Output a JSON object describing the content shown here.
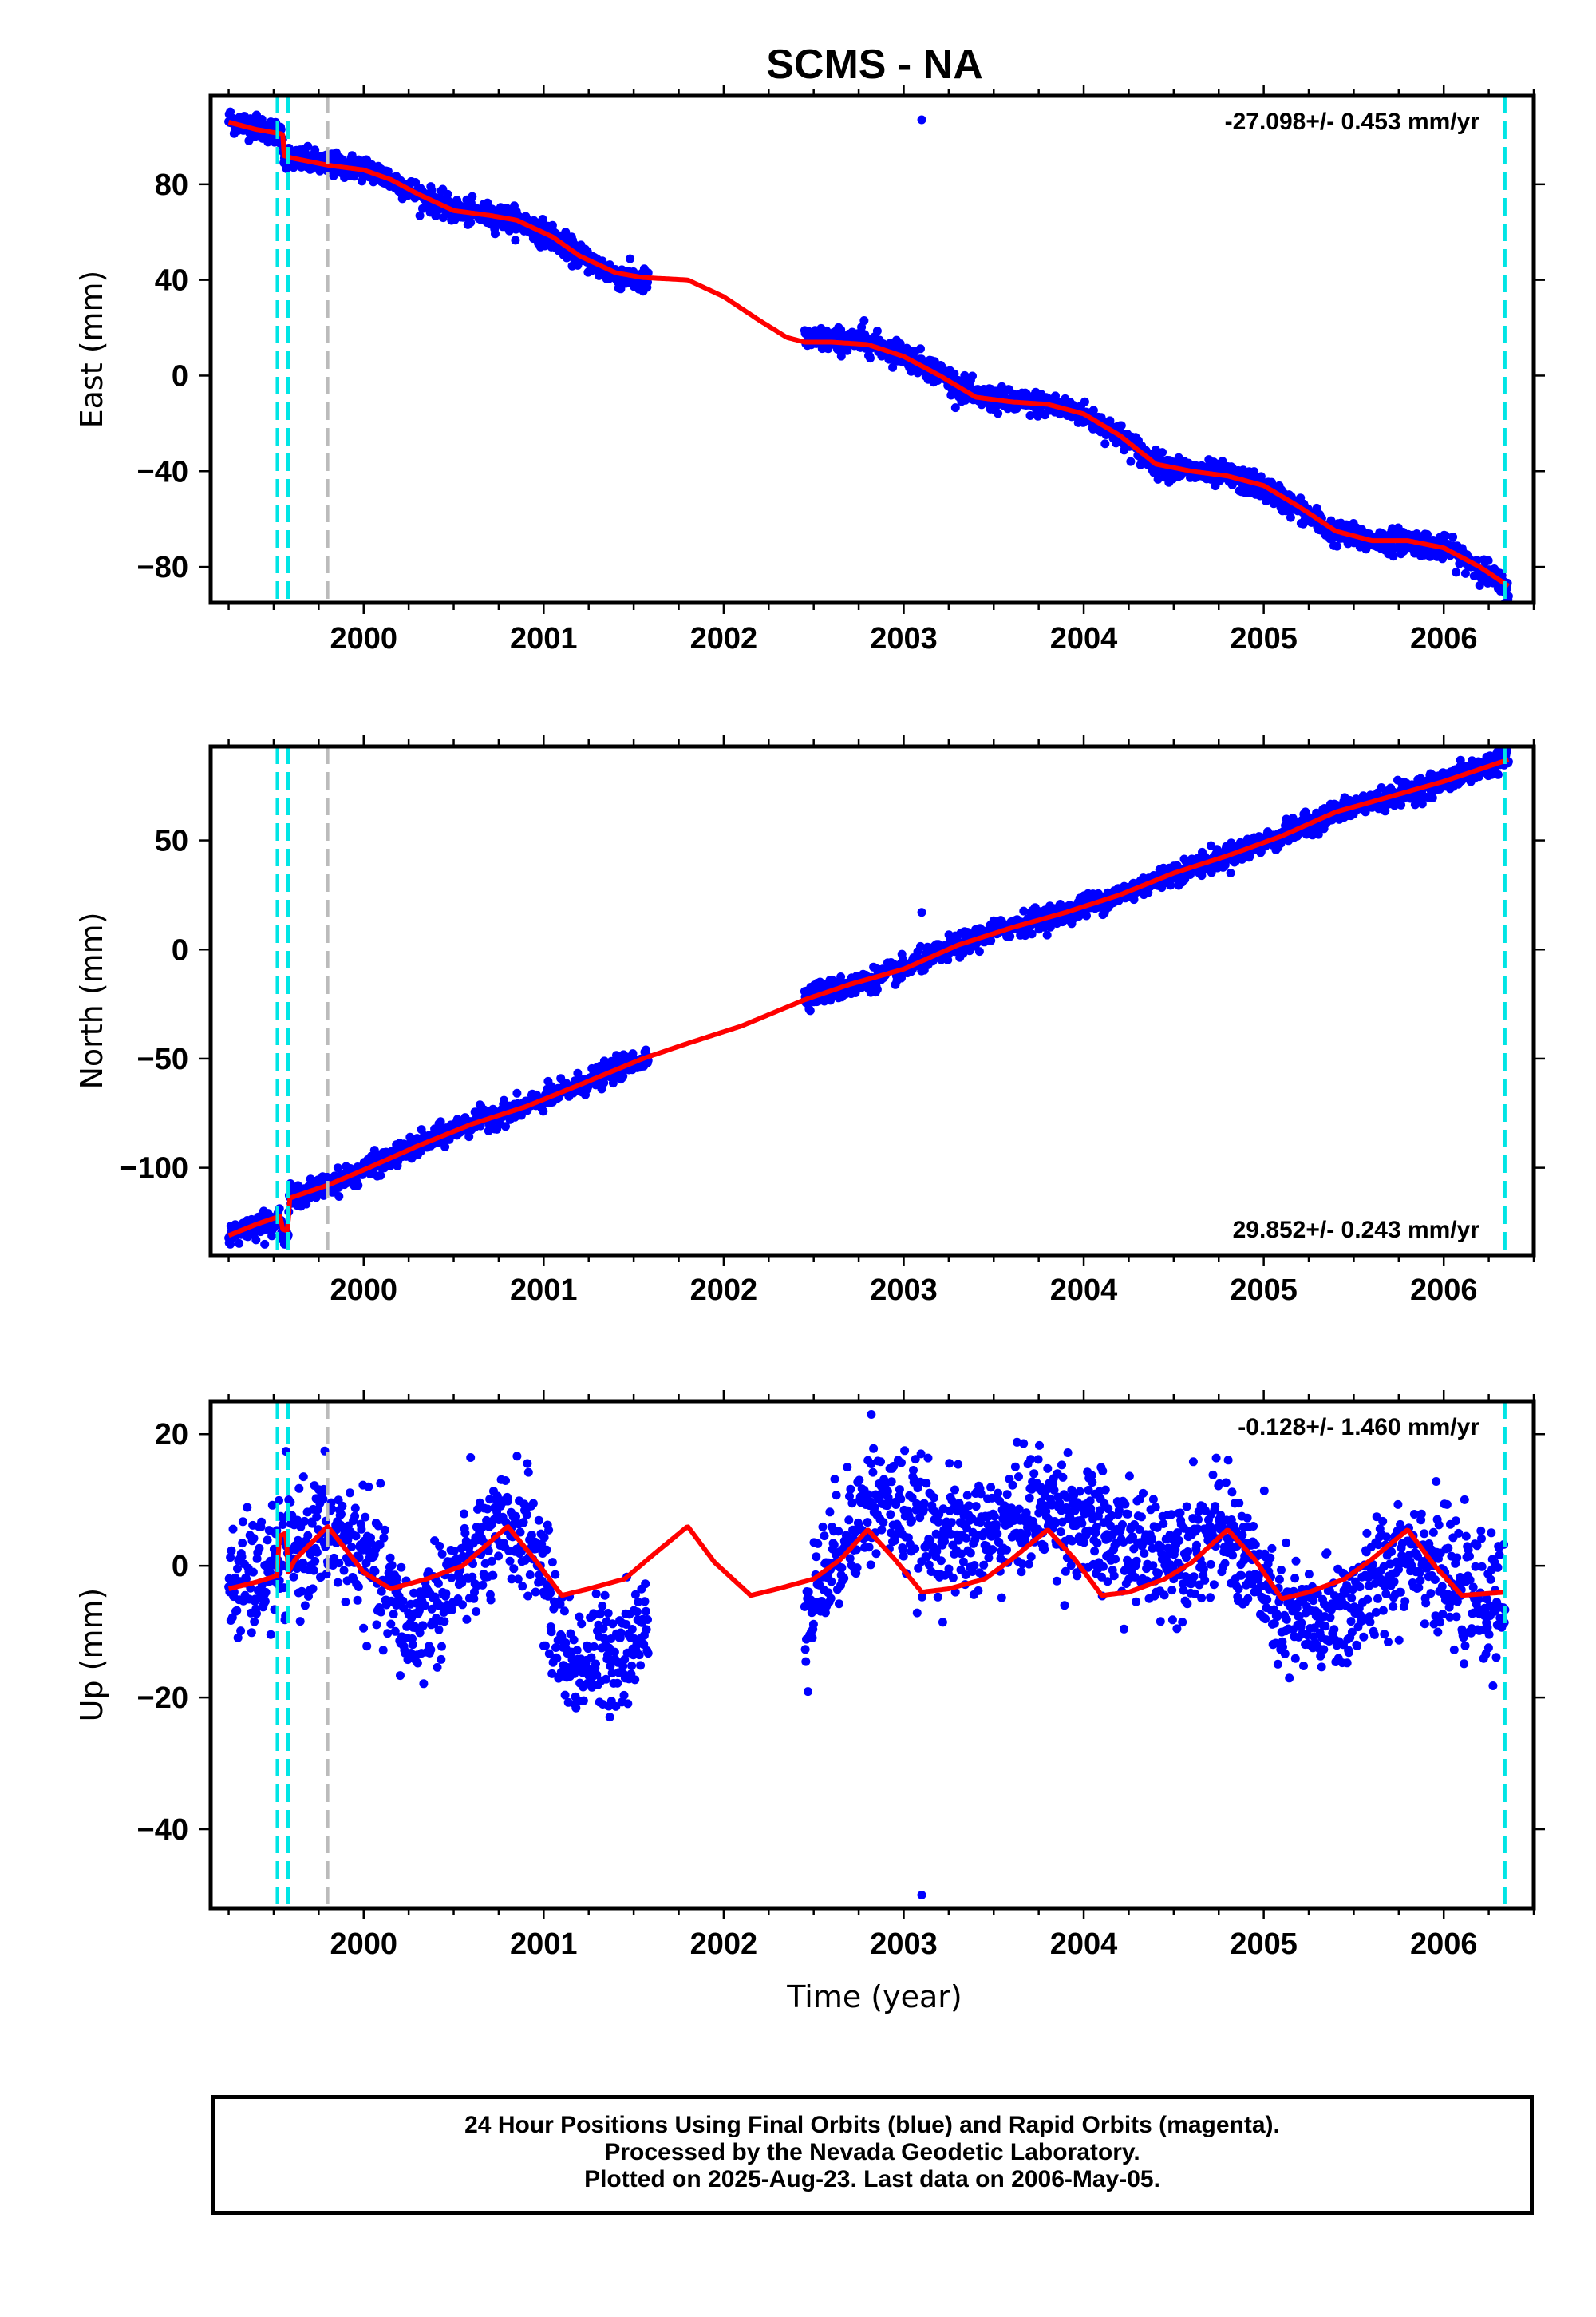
{
  "title": "SCMS - NA",
  "xlabel": "Time (year)",
  "colors": {
    "data": "#0000ff",
    "model": "#ff0000",
    "step": "#00e5e5",
    "gray_step": "#bbbbbb",
    "frame": "#000000"
  },
  "footer": {
    "line1": "24 Hour Positions Using Final Orbits (blue) and Rapid Orbits (magenta).",
    "line2": "Processed by the Nevada Geodetic Laboratory.",
    "line3": "Plotted on 2025-Aug-23. Last data on 2006-May-05."
  },
  "chart_data": [
    {
      "type": "scatter",
      "component": "East",
      "ylabel": "East (mm)",
      "xlim": [
        1999.15,
        2006.5
      ],
      "ylim": [
        -95,
        117
      ],
      "xticks": [
        2000,
        2001,
        2002,
        2003,
        2004,
        2005,
        2006
      ],
      "yticks": [
        -80,
        -40,
        0,
        40,
        80
      ],
      "rate_label": "-27.098+/- 0.453 mm/yr",
      "rate_label_position": "top-right",
      "cyan_steps": [
        1999.52,
        1999.58,
        2006.34
      ],
      "gray_steps": [
        1999.8
      ],
      "gaps": [
        [
          2001.59,
          2002.44
        ]
      ],
      "outliers": [
        {
          "x": 2003.1,
          "y": 107
        },
        {
          "x": 2002.78,
          "y": 23
        }
      ],
      "series": [
        {
          "role": "model",
          "x": [
            1999.25,
            1999.4,
            1999.55,
            1999.555,
            1999.6,
            1999.8,
            2000.0,
            2000.15,
            2000.3,
            2000.5,
            2000.7,
            2000.85,
            2001.05,
            2001.2,
            2001.4,
            2001.55,
            2001.8,
            2002.0,
            2002.2,
            2002.35,
            2002.45,
            2002.6,
            2002.8,
            2003.0,
            2003.2,
            2003.4,
            2003.6,
            2003.8,
            2004.0,
            2004.2,
            2004.4,
            2004.6,
            2004.8,
            2005.0,
            2005.2,
            2005.4,
            2005.6,
            2005.8,
            2006.0,
            2006.2,
            2006.36
          ],
          "y": [
            106,
            103,
            101,
            92,
            91,
            88,
            86,
            82,
            76,
            69,
            67,
            65,
            58,
            50,
            43,
            41,
            40,
            33,
            23,
            16,
            14,
            14,
            13,
            8,
            0,
            -9,
            -11,
            -12,
            -16,
            -25,
            -37,
            -40,
            -42,
            -46,
            -55,
            -65,
            -69,
            -69,
            -72,
            -80,
            -88
          ]
        },
        {
          "role": "data",
          "segments": [
            {
              "x": [
                1999.25,
                1999.4,
                1999.55,
                1999.555,
                1999.6,
                1999.8,
                2000.0,
                2000.15,
                2000.3,
                2000.5,
                2000.7,
                2000.85,
                2001.05,
                2001.2,
                2001.4,
                2001.58
              ],
              "y": [
                107,
                104,
                101,
                92,
                91,
                88,
                87,
                82,
                76,
                69,
                67,
                65,
                58,
                50,
                42,
                39
              ]
            },
            {
              "x": [
                2002.45,
                2002.6,
                2002.8,
                2003.0,
                2003.2,
                2003.4,
                2003.6,
                2003.8,
                2004.0,
                2004.2,
                2004.4,
                2004.6,
                2004.8,
                2005.0,
                2005.2,
                2005.4,
                2005.6,
                2005.8,
                2006.0,
                2006.2,
                2006.36
              ],
              "y": [
                15,
                15,
                14,
                9,
                1,
                -9,
                -11,
                -12,
                -16,
                -25,
                -37,
                -40,
                -42,
                -47,
                -56,
                -66,
                -69,
                -69,
                -72,
                -80,
                -90
              ]
            }
          ],
          "scatter_mm": 2.5
        }
      ]
    },
    {
      "type": "scatter",
      "component": "North",
      "ylabel": "North (mm)",
      "xlim": [
        1999.15,
        2006.5
      ],
      "ylim": [
        -140,
        93
      ],
      "xticks": [
        2000,
        2001,
        2002,
        2003,
        2004,
        2005,
        2006
      ],
      "yticks": [
        -100,
        -50,
        0,
        50
      ],
      "rate_label": "29.852+/- 0.243 mm/yr",
      "rate_label_position": "bottom-right",
      "cyan_steps": [
        1999.52,
        1999.58,
        2006.34
      ],
      "gray_steps": [
        1999.8
      ],
      "gaps": [
        [
          2001.59,
          2002.44
        ]
      ],
      "outliers": [
        {
          "x": 2003.1,
          "y": 17
        },
        {
          "x": 1999.45,
          "y": -135
        }
      ],
      "series": [
        {
          "role": "model",
          "x": [
            1999.25,
            1999.4,
            1999.54,
            1999.545,
            1999.58,
            1999.585,
            1999.8,
            2000.0,
            2000.3,
            2000.6,
            2000.9,
            2001.2,
            2001.55,
            2001.8,
            2002.1,
            2002.45,
            2002.7,
            2003.0,
            2003.3,
            2003.6,
            2003.9,
            2004.2,
            2004.5,
            2004.8,
            2005.1,
            2005.4,
            2005.7,
            2006.0,
            2006.36
          ],
          "y": [
            -131,
            -126,
            -122,
            -128,
            -129,
            -114,
            -108,
            -101,
            -90,
            -80,
            -72,
            -62,
            -50,
            -43,
            -35,
            -23,
            -16,
            -9,
            2,
            10,
            17,
            25,
            35,
            43,
            52,
            63,
            70,
            77,
            87
          ]
        },
        {
          "role": "data",
          "segments": [
            {
              "x": [
                1999.25,
                1999.4,
                1999.54,
                1999.545,
                1999.58,
                1999.585,
                1999.8,
                2000.0,
                2000.3,
                2000.6,
                2000.9,
                2001.2,
                2001.58
              ],
              "y": [
                -131,
                -126,
                -123,
                -129,
                -131,
                -114,
                -108,
                -101,
                -90,
                -79,
                -72,
                -62,
                -49
              ]
            },
            {
              "x": [
                2002.45,
                2002.7,
                2003.0,
                2003.3,
                2003.6,
                2003.9,
                2004.2,
                2004.5,
                2004.8,
                2005.1,
                2005.4,
                2005.7,
                2006.0,
                2006.36
              ],
              "y": [
                -21,
                -17,
                -9,
                2,
                11,
                17,
                25,
                35,
                43,
                52,
                63,
                70,
                77,
                88
              ]
            }
          ],
          "scatter_mm": 2.5
        }
      ]
    },
    {
      "type": "scatter",
      "component": "Up",
      "ylabel": "Up (mm)",
      "xlim": [
        1999.15,
        2006.5
      ],
      "ylim": [
        -52,
        25
      ],
      "xticks": [
        2000,
        2001,
        2002,
        2003,
        2004,
        2005,
        2006
      ],
      "yticks": [
        -40,
        -20,
        0,
        20
      ],
      "rate_label": "-0.128+/- 1.460 mm/yr",
      "rate_label_position": "top-right",
      "cyan_steps": [
        1999.52,
        1999.58,
        2006.34
      ],
      "gray_steps": [
        1999.8
      ],
      "gaps": [
        [
          2001.59,
          2002.44
        ]
      ],
      "outliers": [
        {
          "x": 2003.1,
          "y": -50
        },
        {
          "x": 2002.82,
          "y": 23
        }
      ],
      "series": [
        {
          "role": "model",
          "x": [
            1999.25,
            1999.4,
            1999.52,
            1999.53,
            1999.57,
            1999.58,
            1999.62,
            1999.8,
            2000.0,
            2000.15,
            2000.35,
            2000.55,
            2000.8,
            2000.95,
            2001.1,
            2001.25,
            2001.45,
            2001.6,
            2001.8,
            2001.95,
            2002.15,
            2002.3,
            2002.5,
            2002.65,
            2002.8,
            2002.95,
            2003.1,
            2003.25,
            2003.45,
            2003.6,
            2003.8,
            2003.95,
            2004.1,
            2004.25,
            2004.45,
            2004.6,
            2004.8,
            2004.95,
            2005.1,
            2005.25,
            2005.45,
            2005.6,
            2005.8,
            2005.95,
            2006.1,
            2006.34
          ],
          "y": [
            -3.5,
            -2.5,
            -1.5,
            4.5,
            5.0,
            -1.0,
            1.0,
            6.0,
            -1.0,
            -3.5,
            -2.0,
            0.0,
            6.0,
            1.0,
            -4.5,
            -3.5,
            -2.0,
            1.5,
            6.0,
            0.5,
            -4.5,
            -3.5,
            -2.0,
            1.0,
            5.5,
            1.0,
            -4.0,
            -3.5,
            -2.0,
            1.0,
            5.5,
            1.0,
            -4.5,
            -4.0,
            -2.0,
            0.5,
            5.5,
            1.0,
            -5.0,
            -4.0,
            -2.0,
            1.0,
            5.5,
            0.0,
            -4.5,
            -4.0
          ]
        },
        {
          "role": "data",
          "segments": [
            {
              "x": [
                1999.25,
                1999.4,
                1999.55,
                1999.65,
                1999.8,
                2000.0,
                2000.15,
                2000.25,
                2000.45,
                2000.65,
                2000.85,
                2000.95,
                2001.05,
                2001.15,
                2001.3,
                2001.45,
                2001.58
              ],
              "y": [
                -3,
                -2,
                1,
                3,
                5,
                2,
                -5,
                -10,
                -4,
                2,
                6,
                4,
                -8,
                -15,
                -14,
                -12,
                -10
              ]
            },
            {
              "x": [
                2002.45,
                2002.55,
                2002.7,
                2002.85,
                2003.0,
                2003.15,
                2003.35,
                2003.55,
                2003.75,
                2003.9,
                2004.05,
                2004.25,
                2004.45,
                2004.65,
                2004.8,
                2004.95,
                2005.1,
                2005.3,
                2005.5,
                2005.7,
                2005.85,
                2006.0,
                2006.15,
                2006.34
              ],
              "y": [
                -6,
                -2,
                6,
                10,
                8,
                5,
                4,
                6,
                9,
                8,
                5,
                3,
                2,
                4,
                5,
                -1,
                -8,
                -9,
                -6,
                0,
                3,
                -2,
                -5,
                -6
              ]
            }
          ],
          "scatter_mm": 4.5
        }
      ]
    }
  ]
}
